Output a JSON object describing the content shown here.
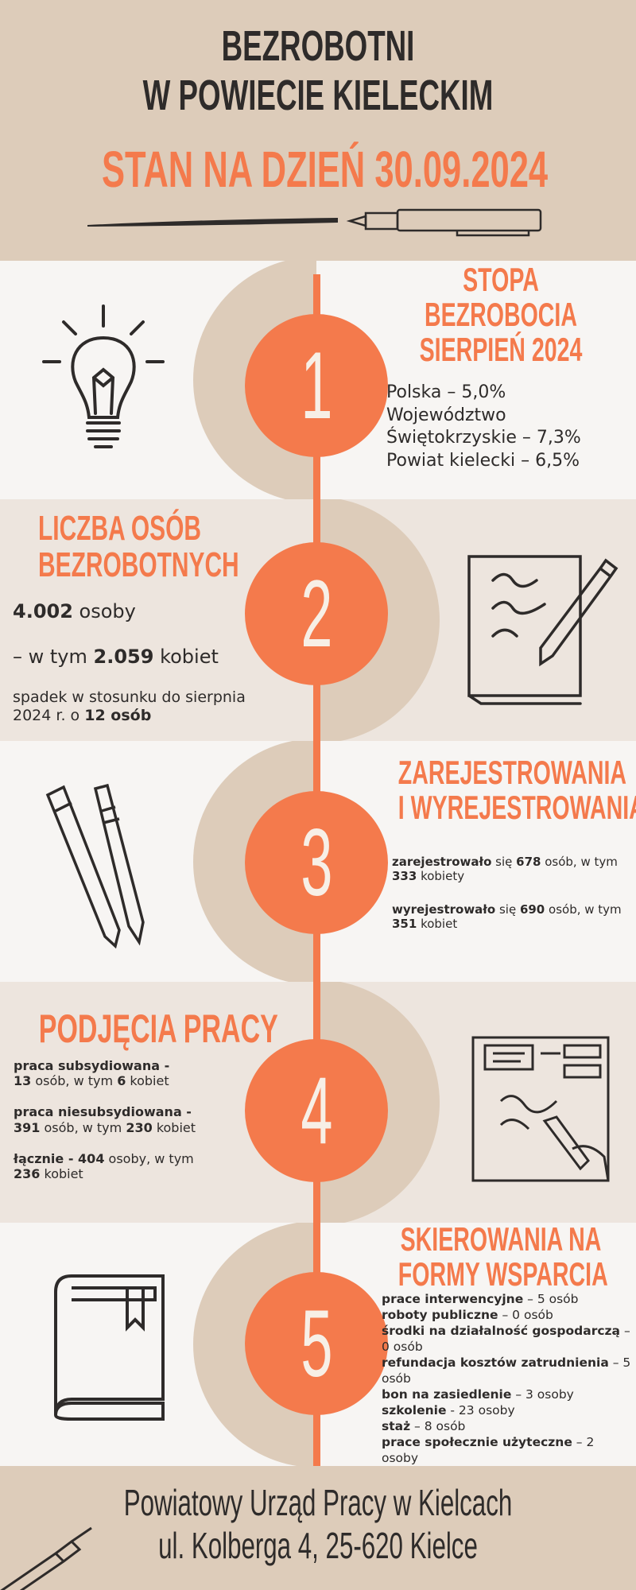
{
  "header": {
    "title_line1": "BEZROBOTNI",
    "title_line2": "W POWIECIE KIELECKIM",
    "subtitle": "STAN NA DZIEŃ 30.09.2024"
  },
  "colors": {
    "accent": "#f47a4c",
    "beige": "#ddccba",
    "light": "#f7f5f3",
    "text": "#2e2b2a"
  },
  "sections": [
    {
      "number": "1",
      "icon": "lightbulb-icon",
      "title": [
        "STOPA",
        "BEZROBOCIA",
        "SIERPIEŃ 2024"
      ],
      "lines": [
        "Polska – 5,0%",
        "Województwo",
        "Świętokrzyskie – 7,3%",
        "Powiat kielecki – 6,5%"
      ]
    },
    {
      "number": "2",
      "icon": "notebook-pen-icon",
      "title": [
        "LICZBA OSÓB",
        "BEZROBOTNYCH"
      ],
      "count": "4.002",
      "count_unit": " osoby",
      "women_prefix": "– w tym ",
      "women": "2.059",
      "women_suffix": " kobiet",
      "change_text": "spadek w stosunku do sierpnia 2024 r. o ",
      "change_value": "12 osób"
    },
    {
      "number": "3",
      "icon": "pens-icon",
      "title": [
        "ZAREJESTROWANIA",
        "I WYREJESTROWANIA"
      ],
      "reg_label": "zarejestrowało",
      "reg_mid": " się  ",
      "reg_value": "678",
      "reg_suffix": " osób, w tym ",
      "reg_women": "333",
      "reg_women_suffix": " kobiety",
      "unreg_label": "wyrejestrowało",
      "unreg_mid": " się ",
      "unreg_value": "690",
      "unreg_suffix": " osób, w tym ",
      "unreg_women": "351",
      "unreg_women_suffix": " kobiet"
    },
    {
      "number": "4",
      "icon": "document-signing-icon",
      "title": [
        "PODJĘCIA PRACY"
      ],
      "items": [
        {
          "label": "praca subsydiowana -",
          "value": "13",
          "mid": " osób, w tym ",
          "women": "6",
          "suffix": " kobiet"
        },
        {
          "label": "praca niesubsydiowana -",
          "value": "391",
          "mid": " osób,  w tym ",
          "women": "230",
          "suffix": " kobiet"
        },
        {
          "label": "łącznie - ",
          "value": "404",
          "mid": " osoby, w tym ",
          "women": "236",
          "suffix": " kobiet"
        }
      ]
    },
    {
      "number": "5",
      "icon": "book-icon",
      "title": [
        "SKIEROWANIA NA",
        "FORMY WSPARCIA"
      ],
      "items": [
        {
          "label": "prace interwencyjne",
          "value": " – 5 osób"
        },
        {
          "label": "roboty publiczne",
          "value": " – 0 osób"
        },
        {
          "label": "środki na działalność gospodarczą",
          "value": " – 0 osób"
        },
        {
          "label": "refundacja kosztów zatrudnienia",
          "value": " – 5 osób"
        },
        {
          "label": "bon na zasiedlenie",
          "value": " – 3 osoby"
        },
        {
          "label": "szkolenie",
          "value": " -  23 osoby"
        },
        {
          "label": "staż",
          "value": " – 8 osób"
        },
        {
          "label": "prace społecznie użyteczne",
          "value": " – 2 osoby"
        }
      ]
    }
  ],
  "footer": {
    "line1": "Powiatowy Urząd Pracy w Kielcach",
    "line2": "ul. Kolberga 4, 25-620 Kielce"
  }
}
